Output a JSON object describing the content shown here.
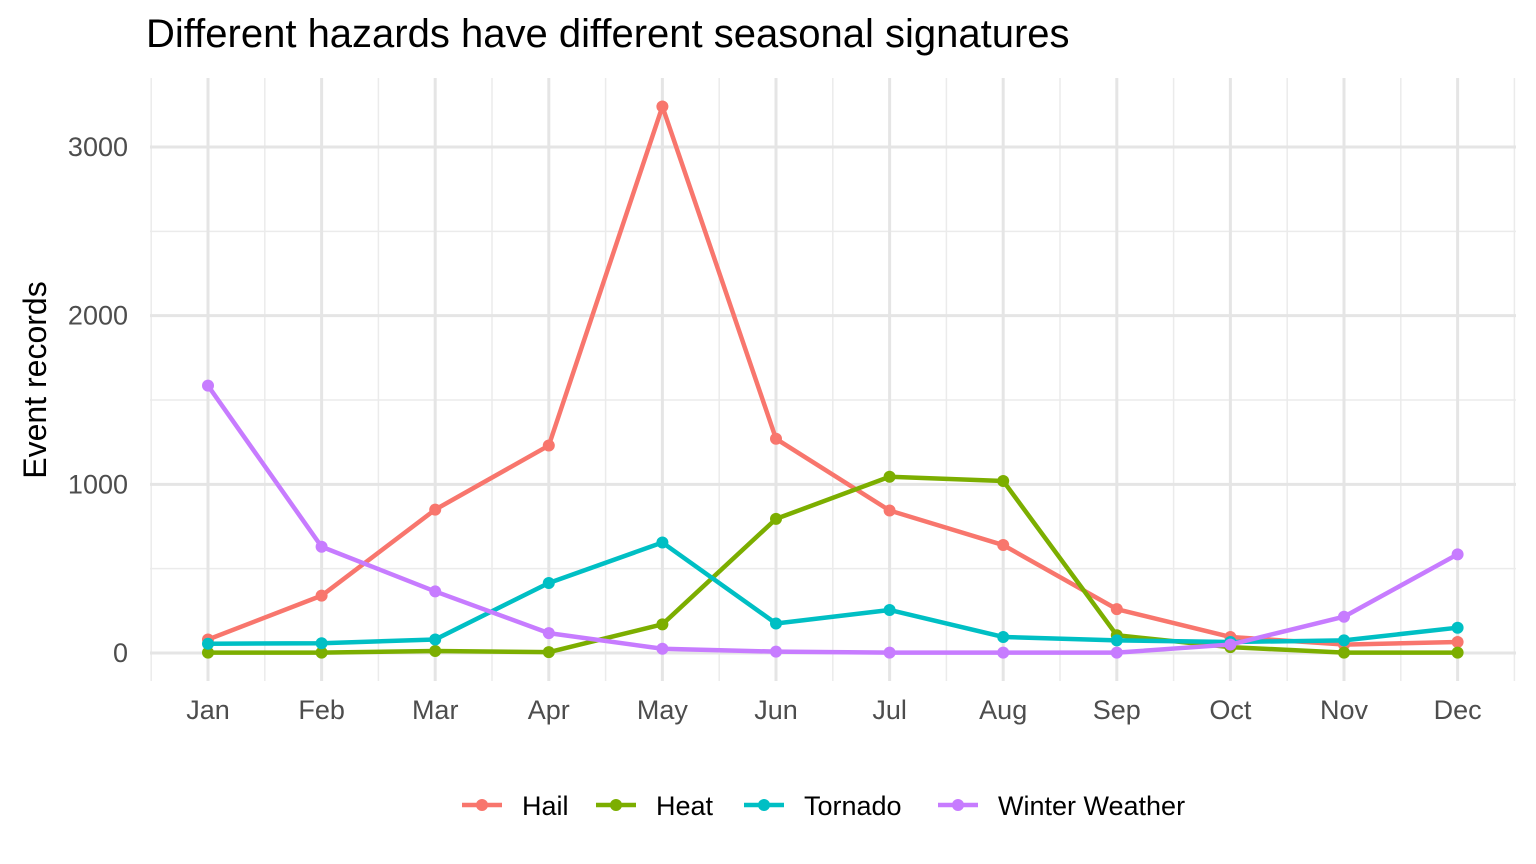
{
  "chart_data": {
    "type": "line",
    "title": "Different hazards have different seasonal signatures",
    "xlabel": "",
    "ylabel": "Event records",
    "categories": [
      "Jan",
      "Feb",
      "Mar",
      "Apr",
      "May",
      "Jun",
      "Jul",
      "Aug",
      "Sep",
      "Oct",
      "Nov",
      "Dec"
    ],
    "ylim": [
      -80,
      3420
    ],
    "yticks": [
      0,
      1000,
      2000,
      3000
    ],
    "ytick_labels": [
      "0",
      "1000",
      "2000",
      "3000"
    ],
    "grid": true,
    "legend_position": "bottom",
    "series": [
      {
        "name": "Hail",
        "color": "#F8766D",
        "values": [
          80,
          340,
          850,
          1230,
          3240,
          1270,
          845,
          640,
          260,
          95,
          50,
          65
        ]
      },
      {
        "name": "Heat",
        "color": "#7CAE00",
        "values": [
          2,
          2,
          12,
          5,
          170,
          795,
          1045,
          1020,
          105,
          35,
          2,
          2
        ]
      },
      {
        "name": "Tornado",
        "color": "#00BFC4",
        "values": [
          55,
          58,
          80,
          415,
          655,
          175,
          255,
          95,
          75,
          65,
          75,
          150
        ]
      },
      {
        "name": "Winter Weather",
        "color": "#C77CFF",
        "values": [
          1585,
          630,
          365,
          118,
          25,
          8,
          2,
          2,
          2,
          50,
          215,
          585
        ]
      }
    ]
  }
}
